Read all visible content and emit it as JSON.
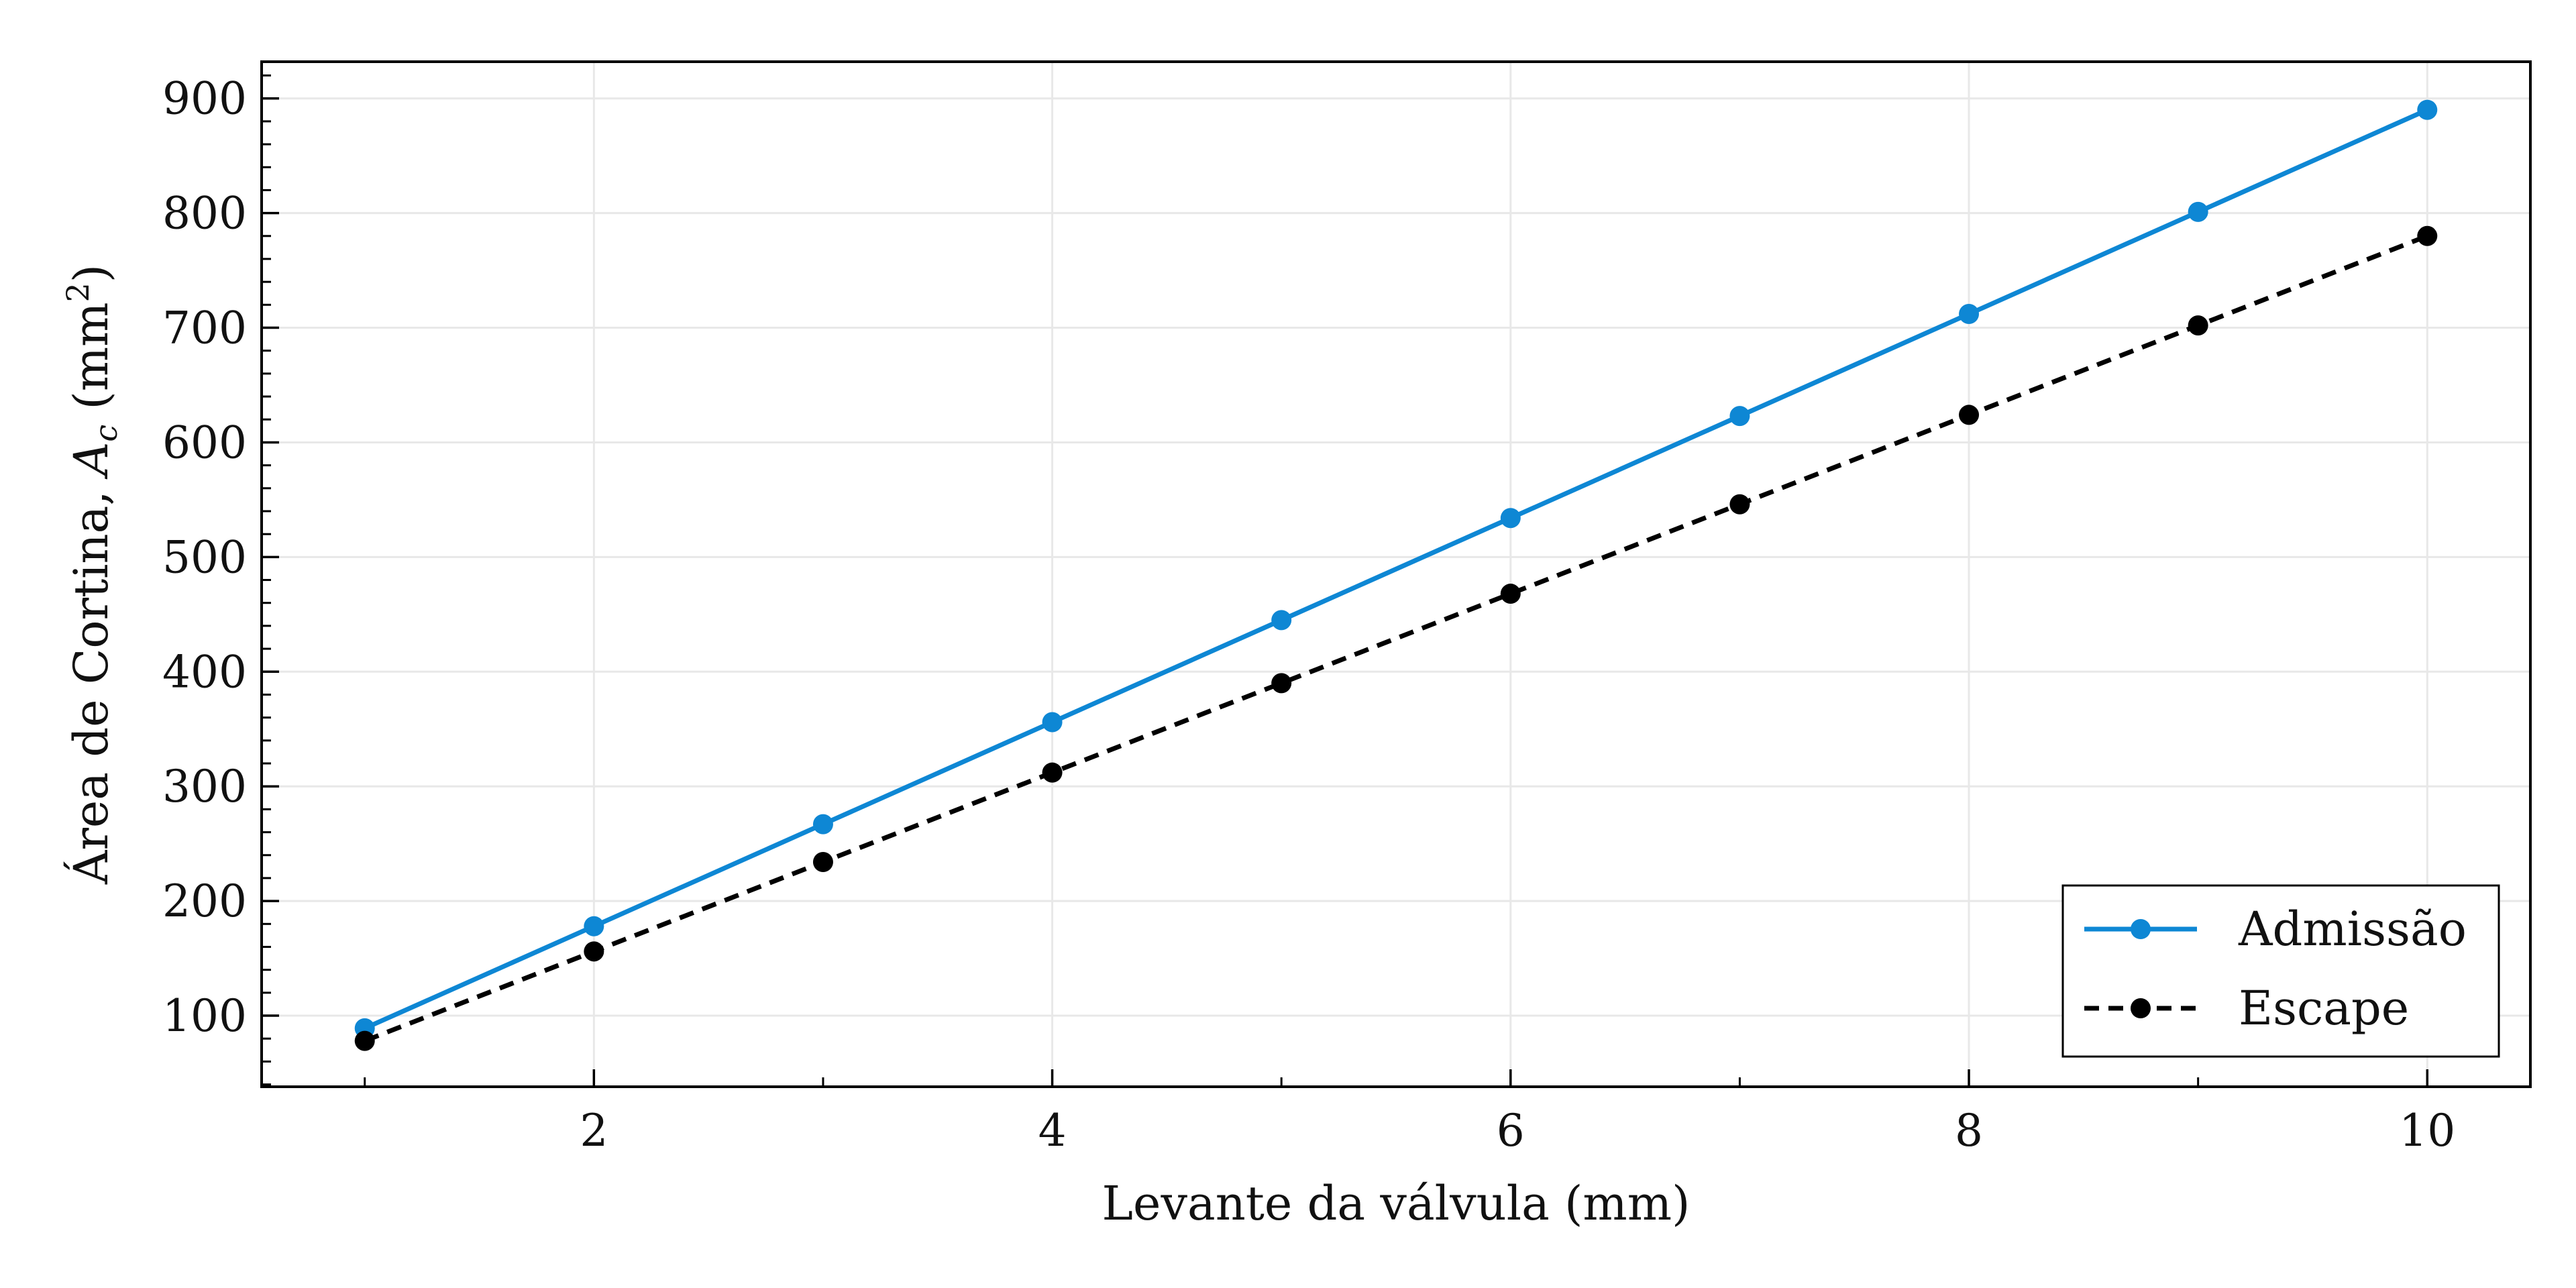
{
  "chart_data": {
    "type": "line",
    "xlabel": "Levante da válvula (mm)",
    "ylabel_parts": {
      "text": "Área de Cortina, ",
      "symbol": "A",
      "subscript": "c",
      "unit_open": " (mm",
      "unit_sup": "2",
      "unit_close": ")"
    },
    "xlim": [
      0.55,
      10.45
    ],
    "ylim": [
      38,
      932
    ],
    "xticks": [
      2,
      4,
      6,
      8,
      10
    ],
    "xtick_labels": [
      "2",
      "4",
      "6",
      "8",
      "10"
    ],
    "yticks": [
      100,
      200,
      300,
      400,
      500,
      600,
      700,
      800,
      900
    ],
    "ytick_labels": [
      "100",
      "200",
      "300",
      "400",
      "500",
      "600",
      "700",
      "800",
      "900"
    ],
    "grid": true,
    "legend_position": "bottom-right",
    "x": [
      1,
      2,
      3,
      4,
      5,
      6,
      7,
      8,
      9,
      10
    ],
    "series": [
      {
        "name": "Admissão",
        "color": "#0e87d4",
        "linestyle": "solid",
        "values": [
          89,
          178,
          267,
          356,
          445,
          534,
          623,
          712,
          801,
          890
        ]
      },
      {
        "name": "Escape",
        "color": "#000000",
        "linestyle": "dashed",
        "values": [
          78,
          156,
          234,
          312,
          390,
          468,
          546,
          624,
          702,
          780
        ]
      }
    ]
  }
}
